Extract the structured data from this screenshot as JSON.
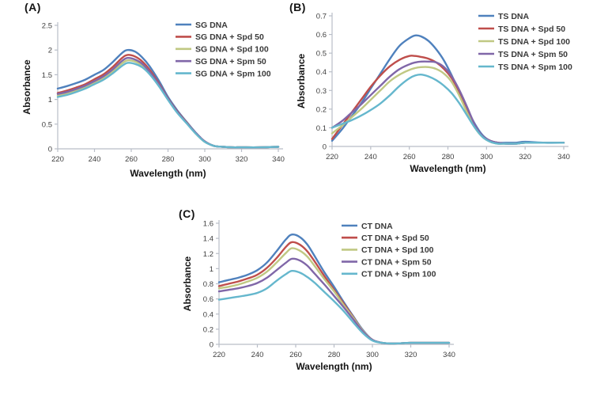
{
  "figure": {
    "description": "UV absorbance spectra of DNA with polyamines",
    "x_axis_title": "Wavelength (nm)",
    "y_axis_title": "Absorbance"
  },
  "chart_data": [
    {
      "type": "line",
      "panel_label": "(A)",
      "title": "",
      "xlabel": "Wavelength (nm)",
      "ylabel": "Absorbance",
      "xlim": [
        220,
        340
      ],
      "ylim": [
        0,
        2.5
      ],
      "x_ticks": [
        220,
        240,
        260,
        280,
        300,
        320,
        340
      ],
      "x_tick_labels": [
        "220",
        "240",
        "260",
        "280",
        "300",
        "320",
        "340"
      ],
      "y_ticks": [
        0,
        0.5,
        1,
        1.5,
        2,
        2.5
      ],
      "y_tick_labels": [
        "0",
        "0.5",
        "1",
        "1.5",
        "2",
        "2.5"
      ],
      "legend_position": "top-right-inside",
      "grid": false,
      "x": [
        220,
        225,
        230,
        235,
        240,
        245,
        250,
        255,
        258,
        262,
        266,
        270,
        275,
        280,
        285,
        290,
        295,
        300,
        305,
        310,
        315,
        320,
        330,
        340
      ],
      "series": [
        {
          "name": "SG DNA",
          "color": "#4f81bd",
          "values": [
            1.22,
            1.27,
            1.33,
            1.4,
            1.5,
            1.6,
            1.76,
            1.94,
            2.0,
            1.97,
            1.85,
            1.67,
            1.38,
            1.05,
            0.78,
            0.55,
            0.33,
            0.15,
            0.06,
            0.04,
            0.03,
            0.03,
            0.03,
            0.04
          ]
        },
        {
          "name": "SG DNA + Spd 50",
          "color": "#bf4e4b",
          "values": [
            1.13,
            1.18,
            1.24,
            1.31,
            1.41,
            1.51,
            1.66,
            1.84,
            1.9,
            1.87,
            1.77,
            1.6,
            1.33,
            1.02,
            0.76,
            0.54,
            0.32,
            0.15,
            0.06,
            0.04,
            0.03,
            0.03,
            0.03,
            0.04
          ]
        },
        {
          "name": "SG DNA + Spd 100",
          "color": "#c0c883",
          "values": [
            1.08,
            1.12,
            1.18,
            1.25,
            1.34,
            1.43,
            1.57,
            1.73,
            1.79,
            1.77,
            1.69,
            1.54,
            1.29,
            1.0,
            0.74,
            0.53,
            0.31,
            0.14,
            0.06,
            0.04,
            0.03,
            0.03,
            0.03,
            0.04
          ]
        },
        {
          "name": "SG DNA + Spm 50",
          "color": "#8067a8",
          "values": [
            1.11,
            1.15,
            1.21,
            1.28,
            1.37,
            1.47,
            1.61,
            1.78,
            1.84,
            1.81,
            1.72,
            1.56,
            1.31,
            1.01,
            0.75,
            0.53,
            0.32,
            0.15,
            0.06,
            0.04,
            0.03,
            0.03,
            0.03,
            0.04
          ]
        },
        {
          "name": "SG DNA + Spm 100",
          "color": "#65b7cd",
          "values": [
            1.05,
            1.09,
            1.15,
            1.22,
            1.31,
            1.4,
            1.53,
            1.68,
            1.74,
            1.72,
            1.65,
            1.51,
            1.27,
            0.99,
            0.73,
            0.52,
            0.31,
            0.14,
            0.06,
            0.04,
            0.03,
            0.03,
            0.03,
            0.04
          ]
        }
      ]
    },
    {
      "type": "line",
      "panel_label": "(B)",
      "title": "",
      "xlabel": "Wavelength (nm)",
      "ylabel": "Absorbance",
      "xlim": [
        220,
        340
      ],
      "ylim": [
        0,
        0.7
      ],
      "x_ticks": [
        220,
        240,
        260,
        280,
        300,
        320,
        340
      ],
      "x_tick_labels": [
        "220",
        "240",
        "260",
        "280",
        "300",
        "320",
        "340"
      ],
      "y_ticks": [
        0,
        0.1,
        0.2,
        0.3,
        0.4,
        0.5,
        0.6,
        0.7
      ],
      "y_tick_labels": [
        "0",
        "0.1",
        "0.2",
        "0.3",
        "0.4",
        "0.5",
        "0.6",
        "0.7"
      ],
      "legend_position": "top-right-inside",
      "grid": false,
      "x": [
        220,
        225,
        230,
        235,
        240,
        245,
        250,
        255,
        260,
        263,
        266,
        270,
        274,
        278,
        282,
        286,
        290,
        294,
        298,
        302,
        306,
        310,
        315,
        320,
        330,
        340
      ],
      "series": [
        {
          "name": "TS DNA",
          "color": "#4f81bd",
          "values": [
            0.03,
            0.09,
            0.16,
            0.23,
            0.31,
            0.39,
            0.47,
            0.54,
            0.58,
            0.595,
            0.59,
            0.565,
            0.52,
            0.46,
            0.38,
            0.29,
            0.2,
            0.12,
            0.06,
            0.03,
            0.02,
            0.02,
            0.02,
            0.025,
            0.02,
            0.02
          ]
        },
        {
          "name": "TS DNA + Spd 50",
          "color": "#bf4e4b",
          "values": [
            0.04,
            0.11,
            0.18,
            0.25,
            0.32,
            0.38,
            0.43,
            0.465,
            0.485,
            0.485,
            0.48,
            0.47,
            0.45,
            0.415,
            0.365,
            0.29,
            0.2,
            0.11,
            0.055,
            0.03,
            0.02,
            0.015,
            0.015,
            0.02,
            0.02,
            0.02
          ]
        },
        {
          "name": "TS DNA + Spd 100",
          "color": "#c0c883",
          "values": [
            0.07,
            0.11,
            0.155,
            0.2,
            0.25,
            0.3,
            0.35,
            0.385,
            0.41,
            0.42,
            0.425,
            0.425,
            0.415,
            0.39,
            0.345,
            0.27,
            0.18,
            0.1,
            0.05,
            0.025,
            0.015,
            0.015,
            0.015,
            0.02,
            0.02,
            0.02
          ]
        },
        {
          "name": "TS DNA + Spm 50",
          "color": "#8067a8",
          "values": [
            0.1,
            0.135,
            0.18,
            0.225,
            0.275,
            0.325,
            0.375,
            0.415,
            0.44,
            0.45,
            0.455,
            0.455,
            0.45,
            0.425,
            0.375,
            0.3,
            0.21,
            0.115,
            0.055,
            0.03,
            0.02,
            0.015,
            0.015,
            0.02,
            0.02,
            0.02
          ]
        },
        {
          "name": "TS DNA + Spm 100",
          "color": "#65b7cd",
          "values": [
            0.1,
            0.12,
            0.14,
            0.165,
            0.195,
            0.23,
            0.275,
            0.325,
            0.365,
            0.38,
            0.385,
            0.375,
            0.355,
            0.325,
            0.285,
            0.23,
            0.165,
            0.1,
            0.05,
            0.025,
            0.015,
            0.015,
            0.015,
            0.02,
            0.02,
            0.02
          ]
        }
      ]
    },
    {
      "type": "line",
      "panel_label": "(C)",
      "title": "",
      "xlabel": "Wavelength (nm)",
      "ylabel": "Absorbance",
      "xlim": [
        220,
        340
      ],
      "ylim": [
        0,
        1.6
      ],
      "x_ticks": [
        220,
        240,
        260,
        280,
        300,
        320,
        340
      ],
      "x_tick_labels": [
        "220",
        "240",
        "260",
        "280",
        "300",
        "320",
        "340"
      ],
      "y_ticks": [
        0,
        0.2,
        0.4,
        0.6,
        0.8,
        1,
        1.2,
        1.4,
        1.6
      ],
      "y_tick_labels": [
        "0",
        "0.2",
        "0.4",
        "0.6",
        "0.8",
        "1",
        "1.2",
        "1.4",
        "1.6"
      ],
      "legend_position": "top-right-inside",
      "grid": false,
      "x": [
        220,
        225,
        230,
        235,
        240,
        245,
        250,
        255,
        258,
        262,
        266,
        270,
        275,
        280,
        285,
        290,
        295,
        300,
        305,
        310,
        315,
        320,
        330,
        340
      ],
      "series": [
        {
          "name": "CT DNA",
          "color": "#4f81bd",
          "values": [
            0.82,
            0.85,
            0.88,
            0.92,
            0.98,
            1.08,
            1.23,
            1.39,
            1.45,
            1.42,
            1.32,
            1.16,
            0.95,
            0.76,
            0.56,
            0.37,
            0.19,
            0.06,
            0.02,
            0.01,
            0.015,
            0.02,
            0.02,
            0.02
          ]
        },
        {
          "name": "CT DNA + Spd 50",
          "color": "#bf4e4b",
          "values": [
            0.77,
            0.8,
            0.83,
            0.87,
            0.92,
            1.01,
            1.14,
            1.29,
            1.35,
            1.32,
            1.23,
            1.09,
            0.9,
            0.72,
            0.54,
            0.36,
            0.18,
            0.06,
            0.02,
            0.01,
            0.015,
            0.02,
            0.02,
            0.02
          ]
        },
        {
          "name": "CT DNA + Spd 100",
          "color": "#c0c883",
          "values": [
            0.74,
            0.76,
            0.79,
            0.83,
            0.88,
            0.96,
            1.08,
            1.21,
            1.27,
            1.24,
            1.16,
            1.03,
            0.86,
            0.7,
            0.52,
            0.35,
            0.18,
            0.06,
            0.02,
            0.01,
            0.015,
            0.02,
            0.02,
            0.02
          ]
        },
        {
          "name": "CT DNA + Spm 50",
          "color": "#8067a8",
          "values": [
            0.7,
            0.72,
            0.74,
            0.77,
            0.81,
            0.88,
            0.98,
            1.08,
            1.13,
            1.11,
            1.04,
            0.93,
            0.79,
            0.64,
            0.49,
            0.33,
            0.17,
            0.06,
            0.02,
            0.01,
            0.015,
            0.02,
            0.02,
            0.02
          ]
        },
        {
          "name": "CT DNA + Spm 100",
          "color": "#65b7cd",
          "values": [
            0.59,
            0.61,
            0.63,
            0.65,
            0.68,
            0.74,
            0.84,
            0.93,
            0.97,
            0.95,
            0.89,
            0.81,
            0.69,
            0.57,
            0.44,
            0.29,
            0.15,
            0.05,
            0.02,
            0.01,
            0.015,
            0.02,
            0.02,
            0.02
          ]
        }
      ]
    }
  ]
}
